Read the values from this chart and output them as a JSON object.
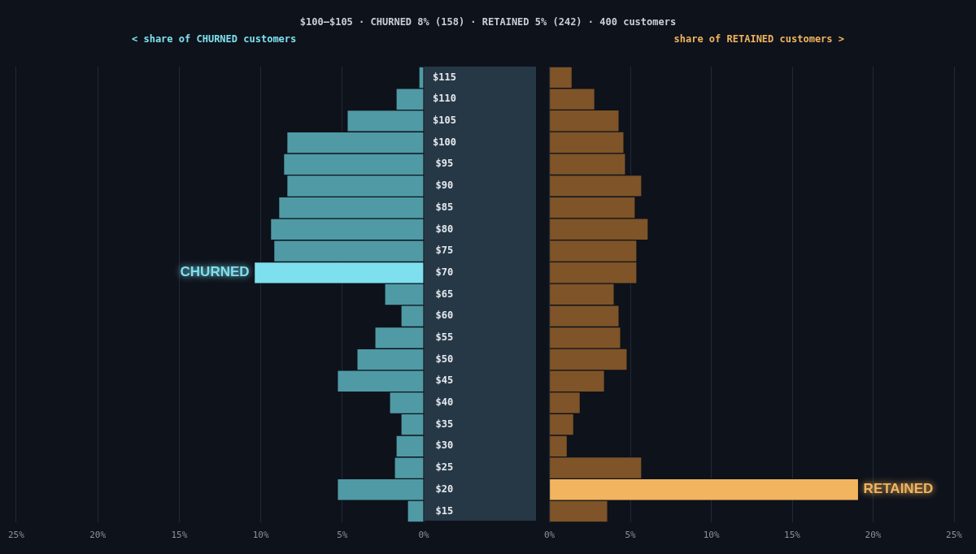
{
  "chart_data": [
    {
      "type": "bar",
      "orientation": "horizontal",
      "title": "$100–$105 · CHURNED 8% (158) · RETAINED 5% (242) · 400 customers",
      "xlabel": "< share of CHURNED customers",
      "categories": [
        "$115",
        "$110",
        "$105",
        "$100",
        "$95",
        "$90",
        "$85",
        "$80",
        "$75",
        "$70",
        "$65",
        "$60",
        "$55",
        "$50",
        "$45",
        "$40",
        "$35",
        "$30",
        "$25",
        "$20",
        "$15"
      ],
      "series": [
        {
          "values": [
            0.3,
            1.7,
            4.7,
            8.4,
            8.6,
            8.4,
            8.9,
            9.4,
            9.2,
            10.4,
            2.4,
            1.4,
            3.0,
            4.1,
            5.3,
            2.1,
            1.4,
            1.7,
            1.8,
            5.3,
            1.0
          ],
          "colors": [
            "#4f9aa5",
            "#4f9aa5",
            "#4f9aa5",
            "#4f9aa5",
            "#4f9aa5",
            "#4f9aa5",
            "#4f9aa5",
            "#4f9aa5",
            "#4f9aa5",
            "#7ee0ee",
            "#4f9aa5",
            "#4f9aa5",
            "#4f9aa5",
            "#4f9aa5",
            "#4f9aa5",
            "#4f9aa5",
            "#4f9aa5",
            "#4f9aa5",
            "#4f9aa5",
            "#4f9aa5",
            "#4f9aa5"
          ]
        }
      ],
      "xlim": [
        25,
        0
      ],
      "xticks": [
        {
          "value": 25,
          "label": "25%"
        },
        {
          "value": 20,
          "label": "20%"
        },
        {
          "value": 15,
          "label": "15%"
        },
        {
          "value": 10,
          "label": "10%"
        },
        {
          "value": 5,
          "label": "5%"
        },
        {
          "value": 0,
          "label": "0%"
        }
      ],
      "grid": "x",
      "legend": false,
      "annotations": [
        {
          "text": "CHURNED",
          "x": 10.4,
          "y": "$70"
        }
      ]
    },
    {
      "type": "bar",
      "orientation": "horizontal",
      "xlabel": "share of RETAINED customers >",
      "tick_labels": "x",
      "categories": [
        "$115",
        "$110",
        "$105",
        "$100",
        "$95",
        "$90",
        "$85",
        "$80",
        "$75",
        "$70",
        "$65",
        "$60",
        "$55",
        "$50",
        "$45",
        "$40",
        "$35",
        "$30",
        "$25",
        "$20",
        "$15"
      ],
      "series": [
        {
          "values": [
            1.4,
            2.8,
            4.3,
            4.6,
            4.7,
            5.7,
            5.3,
            6.1,
            5.4,
            5.4,
            4.0,
            4.3,
            4.4,
            4.8,
            3.4,
            1.9,
            1.5,
            1.1,
            5.7,
            19.1,
            3.6
          ],
          "colors": [
            "#7e5428",
            "#7e5428",
            "#7e5428",
            "#7e5428",
            "#7e5428",
            "#7e5428",
            "#7e5428",
            "#7e5428",
            "#7e5428",
            "#7e5428",
            "#7e5428",
            "#7e5428",
            "#7e5428",
            "#7e5428",
            "#7e5428",
            "#7e5428",
            "#7e5428",
            "#7e5428",
            "#7e5428",
            "#f2b45e",
            "#7e5428"
          ]
        }
      ],
      "xlim": [
        0,
        25
      ],
      "xticks": [
        {
          "value": 0,
          "label": "0%"
        },
        {
          "value": 5,
          "label": "5%"
        },
        {
          "value": 10,
          "label": "10%"
        },
        {
          "value": 15,
          "label": "15%"
        },
        {
          "value": 20,
          "label": "20%"
        },
        {
          "value": 25,
          "label": "25%"
        }
      ],
      "grid": "x",
      "legend": false,
      "annotations": [
        {
          "text": "RETAINED",
          "x": 19.1,
          "y": "$20"
        }
      ]
    }
  ]
}
